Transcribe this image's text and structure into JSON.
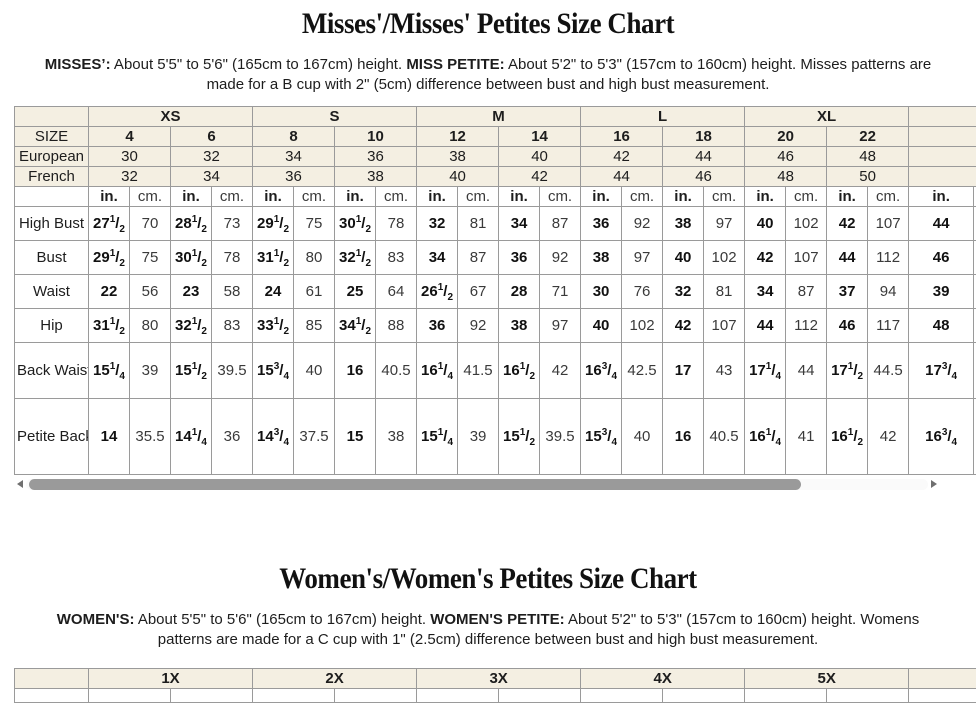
{
  "colors": {
    "header_bg": "#f4efe2",
    "table_border": "#9a9a9a",
    "scroll_thumb": "#9a9a9a",
    "scroll_track": "#fafafa",
    "text": "#1d1d1d"
  },
  "misses": {
    "title": "Misses'/Misses' Petites Size Chart",
    "intro": [
      {
        "bold": "MISSES’:",
        "text": " About 5'5\" to 5'6\" (165cm to 167cm) height. "
      },
      {
        "bold": "MISS PETITE:",
        "text": " About 5'2\" to 5'3\" (157cm to 160cm) height. Misses patterns are made for a B cup with 2\" (5cm) difference between bust and high bust measurement."
      }
    ],
    "table": {
      "groups": [
        {
          "label": "XS",
          "cols": 2
        },
        {
          "label": "S",
          "cols": 2
        },
        {
          "label": "M",
          "cols": 2
        },
        {
          "label": "L",
          "cols": 2
        },
        {
          "label": "XL",
          "cols": 2
        },
        {
          "label": "",
          "cols": 1
        }
      ],
      "header_rows": [
        {
          "label": "SIZE",
          "bold": true,
          "values": [
            "4",
            "6",
            "8",
            "10",
            "12",
            "14",
            "16",
            "18",
            "20",
            "22",
            ""
          ]
        },
        {
          "label": "European",
          "bold": false,
          "values": [
            "30",
            "32",
            "34",
            "36",
            "38",
            "40",
            "42",
            "44",
            "46",
            "48",
            ""
          ]
        },
        {
          "label": "French",
          "bold": false,
          "values": [
            "32",
            "34",
            "36",
            "38",
            "40",
            "42",
            "44",
            "46",
            "48",
            "50",
            ""
          ]
        }
      ],
      "units": {
        "in": "in.",
        "cm": "cm."
      },
      "measure_rows": [
        {
          "label": "High Bust",
          "in": [
            "27 1/2",
            "28 1/2",
            "29 1/2",
            "30 1/2",
            "32",
            "34",
            "36",
            "38",
            "40",
            "42",
            "44"
          ],
          "cm": [
            "70",
            "73",
            "75",
            "78",
            "81",
            "87",
            "92",
            "97",
            "102",
            "107",
            ""
          ]
        },
        {
          "label": "Bust",
          "in": [
            "29 1/2",
            "30 1/2",
            "31 1/2",
            "32 1/2",
            "34",
            "36",
            "38",
            "40",
            "42",
            "44",
            "46"
          ],
          "cm": [
            "75",
            "78",
            "80",
            "83",
            "87",
            "92",
            "97",
            "102",
            "107",
            "112",
            ""
          ]
        },
        {
          "label": "Waist",
          "in": [
            "22",
            "23",
            "24",
            "25",
            "26 1/2",
            "28",
            "30",
            "32",
            "34",
            "37",
            "39"
          ],
          "cm": [
            "56",
            "58",
            "61",
            "64",
            "67",
            "71",
            "76",
            "81",
            "87",
            "94",
            ""
          ]
        },
        {
          "label": "Hip",
          "in": [
            "31 1/2",
            "32 1/2",
            "33 1/2",
            "34 1/2",
            "36",
            "38",
            "40",
            "42",
            "44",
            "46",
            "48"
          ],
          "cm": [
            "80",
            "83",
            "85",
            "88",
            "92",
            "97",
            "102",
            "107",
            "112",
            "117",
            ""
          ]
        },
        {
          "label": "Back Waist Length",
          "in": [
            "15 1/4",
            "15 1/2",
            "15 3/4",
            "16",
            "16 1/4",
            "16 1/2",
            "16 3/4",
            "17",
            "17 1/4",
            "17 1/2",
            "17 3/4"
          ],
          "cm": [
            "39",
            "39.5",
            "40",
            "40.5",
            "41.5",
            "42",
            "42.5",
            "43",
            "44",
            "44.5",
            ""
          ]
        },
        {
          "label": "Petite Back Waist Length",
          "in": [
            "14",
            "14 1/4",
            "14 3/4",
            "15",
            "15 1/4",
            "15 1/2",
            "15 3/4",
            "16",
            "16 1/4",
            "16 1/2",
            "16 3/4"
          ],
          "cm": [
            "35.5",
            "36",
            "37.5",
            "38",
            "39",
            "39.5",
            "40",
            "40.5",
            "41",
            "42",
            ""
          ]
        }
      ]
    }
  },
  "womens": {
    "title": "Women's/Women's Petites Size Chart",
    "intro": [
      {
        "bold": "WOMEN'S:",
        "text": " About 5'5\" to 5'6\" (165cm to 167cm) height. "
      },
      {
        "bold": "WOMEN'S PETITE:",
        "text": " About 5'2\" to 5'3\" (157cm to 160cm) height. Womens patterns are made for a C cup with 1\" (2.5cm) difference between bust and high bust measurement."
      }
    ],
    "table": {
      "groups": [
        {
          "label": "1X",
          "cols": 2
        },
        {
          "label": "2X",
          "cols": 2
        },
        {
          "label": "3X",
          "cols": 2
        },
        {
          "label": "4X",
          "cols": 2
        },
        {
          "label": "5X",
          "cols": 2
        },
        {
          "label": "",
          "cols": 1
        }
      ]
    }
  }
}
